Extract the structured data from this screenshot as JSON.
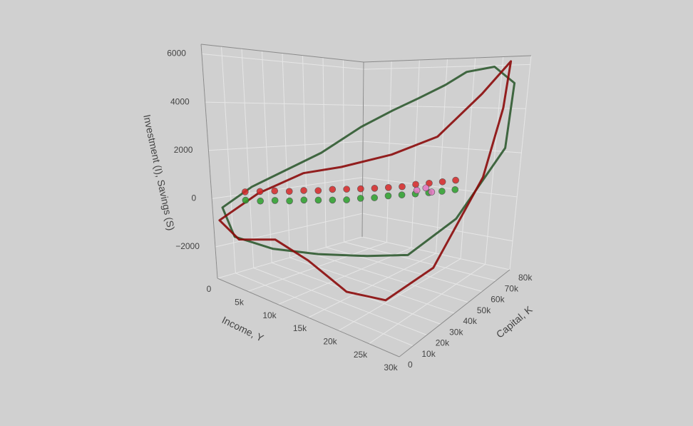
{
  "chart_data": {
    "type": "scatter3d",
    "xaxis_title": "Income, Y",
    "yaxis_title": "Capital, K",
    "zaxis_title": "Investment (I), Savings (S)",
    "xlim": [
      0,
      30000
    ],
    "ylim": [
      0,
      80000
    ],
    "zlim": [
      -3300,
      6400
    ],
    "xticks": [
      0,
      {
        "value": 5000,
        "label": "5k"
      },
      {
        "value": 10000,
        "label": "10k"
      },
      {
        "value": 15000,
        "label": "15k"
      },
      {
        "value": 20000,
        "label": "20k"
      },
      {
        "value": 25000,
        "label": "25k"
      },
      {
        "value": 30000,
        "label": "30k"
      }
    ],
    "yticks": [
      0,
      {
        "value": 10000,
        "label": "10k"
      },
      {
        "value": 20000,
        "label": "20k"
      },
      {
        "value": 30000,
        "label": "30k"
      },
      {
        "value": 40000,
        "label": "40k"
      },
      {
        "value": 50000,
        "label": "50k"
      },
      {
        "value": 60000,
        "label": "60k"
      },
      {
        "value": 70000,
        "label": "70k"
      },
      {
        "value": 80000,
        "label": "80k"
      }
    ],
    "zticks": [
      {
        "value": -2000,
        "label": "−2000"
      },
      0,
      2000,
      4000,
      6000
    ],
    "grid": true,
    "series": [
      {
        "mode": "lines",
        "color": "#2f5a30",
        "x": [
          1000,
          3000,
          8000,
          14000,
          20000,
          25000,
          28000,
          29500,
          28000,
          25000,
          21000,
          18000,
          15000,
          12000,
          9000,
          6000,
          2000
        ],
        "y": [
          2000,
          1000,
          5000,
          10000,
          18000,
          25000,
          45000,
          70000,
          78000,
          75000,
          72000,
          70000,
          65000,
          60000,
          52000,
          40000,
          15000
        ],
        "z": [
          -300,
          -1300,
          -1400,
          -1200,
          -1000,
          -800,
          200,
          2500,
          5200,
          6000,
          5800,
          5200,
          4600,
          4000,
          3200,
          2000,
          500
        ]
      },
      {
        "mode": "lines",
        "color": "#8b0a0a",
        "x": [
          1000,
          4000,
          9000,
          14000,
          20000,
          24000,
          27000,
          28500,
          28000,
          27000,
          24000,
          20000,
          15000,
          10000,
          6000,
          3000
        ],
        "y": [
          0,
          0,
          3000,
          4000,
          5000,
          15000,
          35000,
          60000,
          72000,
          78000,
          72000,
          60000,
          50000,
          38000,
          30000,
          15000
        ],
        "z": [
          -800,
          -1300,
          -900,
          -1300,
          -2000,
          -2300,
          -1500,
          1500,
          4200,
          6200,
          4800,
          3000,
          2200,
          1600,
          1200,
          300
        ]
      },
      {
        "mode": "markers",
        "color": "#2ca02c",
        "x": [
          3000,
          4500,
          6000,
          7500,
          9000,
          10500,
          12000,
          13500,
          15000,
          16500,
          18000,
          19500,
          21000,
          22500,
          24000,
          25500
        ],
        "y": [
          8000,
          11000,
          14000,
          17000,
          20000,
          23000,
          26000,
          29000,
          32000,
          35000,
          38000,
          41000,
          44000,
          47000,
          50000,
          53000
        ],
        "z": [
          100,
          150,
          250,
          300,
          400,
          450,
          500,
          550,
          650,
          700,
          800,
          850,
          900,
          950,
          1000,
          1050
        ]
      },
      {
        "mode": "markers",
        "color": "#d62728",
        "x": [
          3000,
          4500,
          6000,
          7500,
          9000,
          10500,
          12000,
          13500,
          15000,
          16500,
          18000,
          19500,
          21000,
          22500,
          24000,
          25500
        ],
        "y": [
          8000,
          11000,
          14000,
          17000,
          20000,
          23000,
          26000,
          29000,
          32000,
          35000,
          38000,
          41000,
          44000,
          47000,
          50000,
          53000
        ],
        "z": [
          450,
          550,
          650,
          700,
          800,
          850,
          950,
          1000,
          1050,
          1100,
          1150,
          1200,
          1300,
          1350,
          1400,
          1450
        ]
      },
      {
        "mode": "markers",
        "color": "#e377c2",
        "x": [
          21500,
          22500,
          23000
        ],
        "y": [
          43000,
          45000,
          47000
        ],
        "z": [
          1100,
          1200,
          1000
        ]
      }
    ]
  }
}
